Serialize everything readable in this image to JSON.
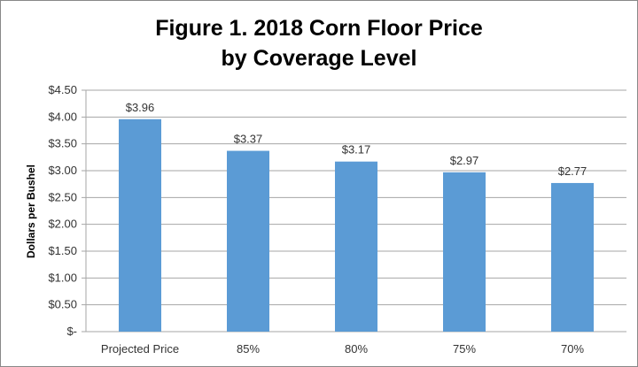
{
  "chart_data": {
    "type": "bar",
    "title": [
      "Figure 1.  2018 Corn Floor Price",
      "by Coverage Level"
    ],
    "xlabel": "",
    "ylabel": "Dollars per Bushel",
    "categories": [
      "Projected Price",
      "85%",
      "80%",
      "75%",
      "70%"
    ],
    "values": [
      3.96,
      3.37,
      3.17,
      2.97,
      2.77
    ],
    "data_labels": [
      "$3.96",
      "$3.37",
      "$3.17",
      "$2.97",
      "$2.77"
    ],
    "ylim": [
      0,
      4.5
    ],
    "yticks": [
      0,
      0.5,
      1,
      1.5,
      2,
      2.5,
      3,
      3.5,
      4,
      4.5
    ],
    "ytick_labels": [
      "$-",
      "$0.50",
      "$1.00",
      "$1.50",
      "$2.00",
      "$2.50",
      "$3.00",
      "$3.50",
      "$4.00",
      "$4.50"
    ],
    "grid": true,
    "legend": "none",
    "bar_color": "#5b9bd5"
  }
}
